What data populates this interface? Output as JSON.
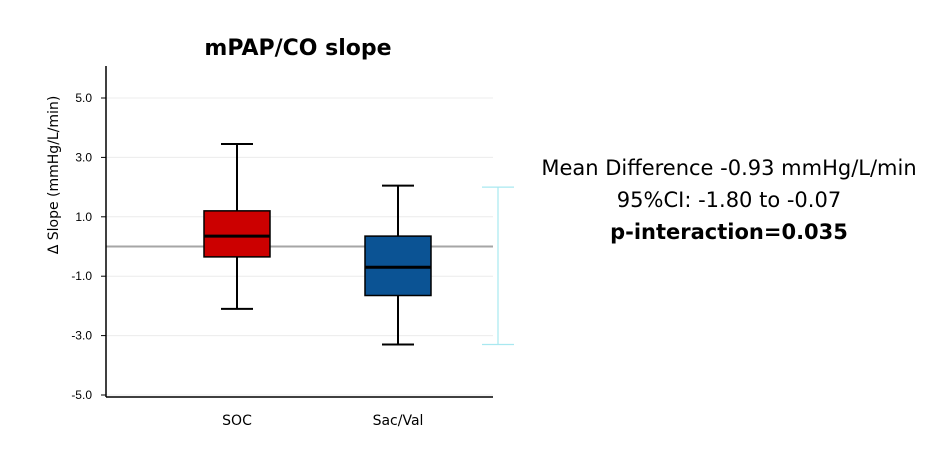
{
  "chart_data": {
    "type": "boxplot",
    "title": "mPAP/CO slope",
    "ylabel": "Δ Slope (mmHg/L/min)",
    "xlabel": "",
    "ylim": [
      -5.0,
      6.0
    ],
    "yticks": [
      "5.0",
      "3.0",
      "1.0",
      "-1.0",
      "-3.0",
      "-5.0"
    ],
    "ytick_values": [
      5,
      3,
      1,
      -1,
      -3,
      -5
    ],
    "reference_line": 0,
    "grid": true,
    "categories": [
      "SOC",
      "Sac/Val"
    ],
    "boxes": [
      {
        "category": "SOC",
        "min": -2.1,
        "q1": -0.35,
        "median": 0.35,
        "q3": 1.2,
        "max": 3.45,
        "color": "#CC0000"
      },
      {
        "category": "Sac/Val",
        "min": -3.3,
        "q1": -1.65,
        "median": -0.7,
        "q3": 0.35,
        "max": 2.05,
        "color": "#0B5394"
      }
    ],
    "ci_bar": {
      "low": -3.3,
      "high": 2.0,
      "color": "#A8E8F0"
    }
  },
  "stats": {
    "mean_difference": "Mean Difference -0.93 mmHg/L/min",
    "ci": "95%CI: -1.80 to -0.07",
    "p_interaction": "p-interaction=0.035"
  }
}
